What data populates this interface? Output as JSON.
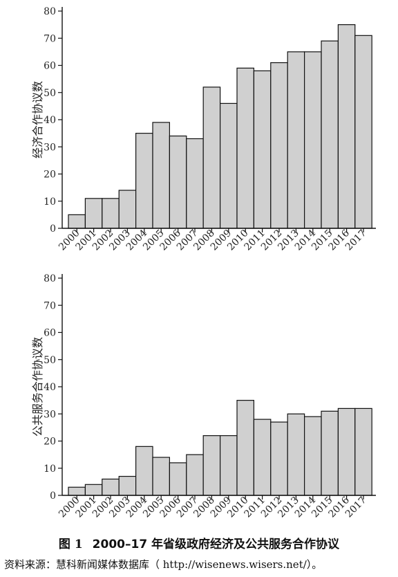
{
  "figure": {
    "caption_number": "图 1",
    "caption_title": "2000–17 年省级政府经济及公共服务合作协议",
    "source": "资料来源：慧科新闻媒体数据库（ http://wisenews.wisers.net/）。"
  },
  "chart_data": [
    {
      "type": "bar",
      "title": "",
      "xlabel": "",
      "ylabel": "经济合作协议数",
      "ylim": [
        0,
        80
      ],
      "yticks": [
        0,
        10,
        20,
        30,
        40,
        50,
        60,
        70,
        80
      ],
      "grid": false,
      "categories": [
        "2000",
        "2001",
        "2002",
        "2003",
        "2004",
        "2005",
        "2006",
        "2007",
        "2008",
        "2009",
        "2010",
        "2011",
        "2012",
        "2013",
        "2014",
        "2015",
        "2016",
        "2017"
      ],
      "values": [
        5,
        11,
        11,
        14,
        35,
        39,
        34,
        33,
        52,
        46,
        59,
        58,
        61,
        65,
        65,
        69,
        75,
        71
      ],
      "bar_color": "#d0d0d0",
      "edge_color": "#111111"
    },
    {
      "type": "bar",
      "title": "",
      "xlabel": "",
      "ylabel": "公共服务合作协议数",
      "ylim": [
        0,
        80
      ],
      "yticks": [
        0,
        10,
        20,
        30,
        40,
        50,
        60,
        70,
        80
      ],
      "grid": false,
      "categories": [
        "2000",
        "2001",
        "2002",
        "2003",
        "2004",
        "2005",
        "2006",
        "2007",
        "2008",
        "2009",
        "2010",
        "2011",
        "2012",
        "2013",
        "2014",
        "2015",
        "2016",
        "2017"
      ],
      "values": [
        3,
        4,
        6,
        7,
        18,
        14,
        12,
        15,
        22,
        22,
        35,
        28,
        27,
        30,
        29,
        31,
        32,
        32
      ],
      "bar_color": "#d0d0d0",
      "edge_color": "#111111"
    }
  ]
}
